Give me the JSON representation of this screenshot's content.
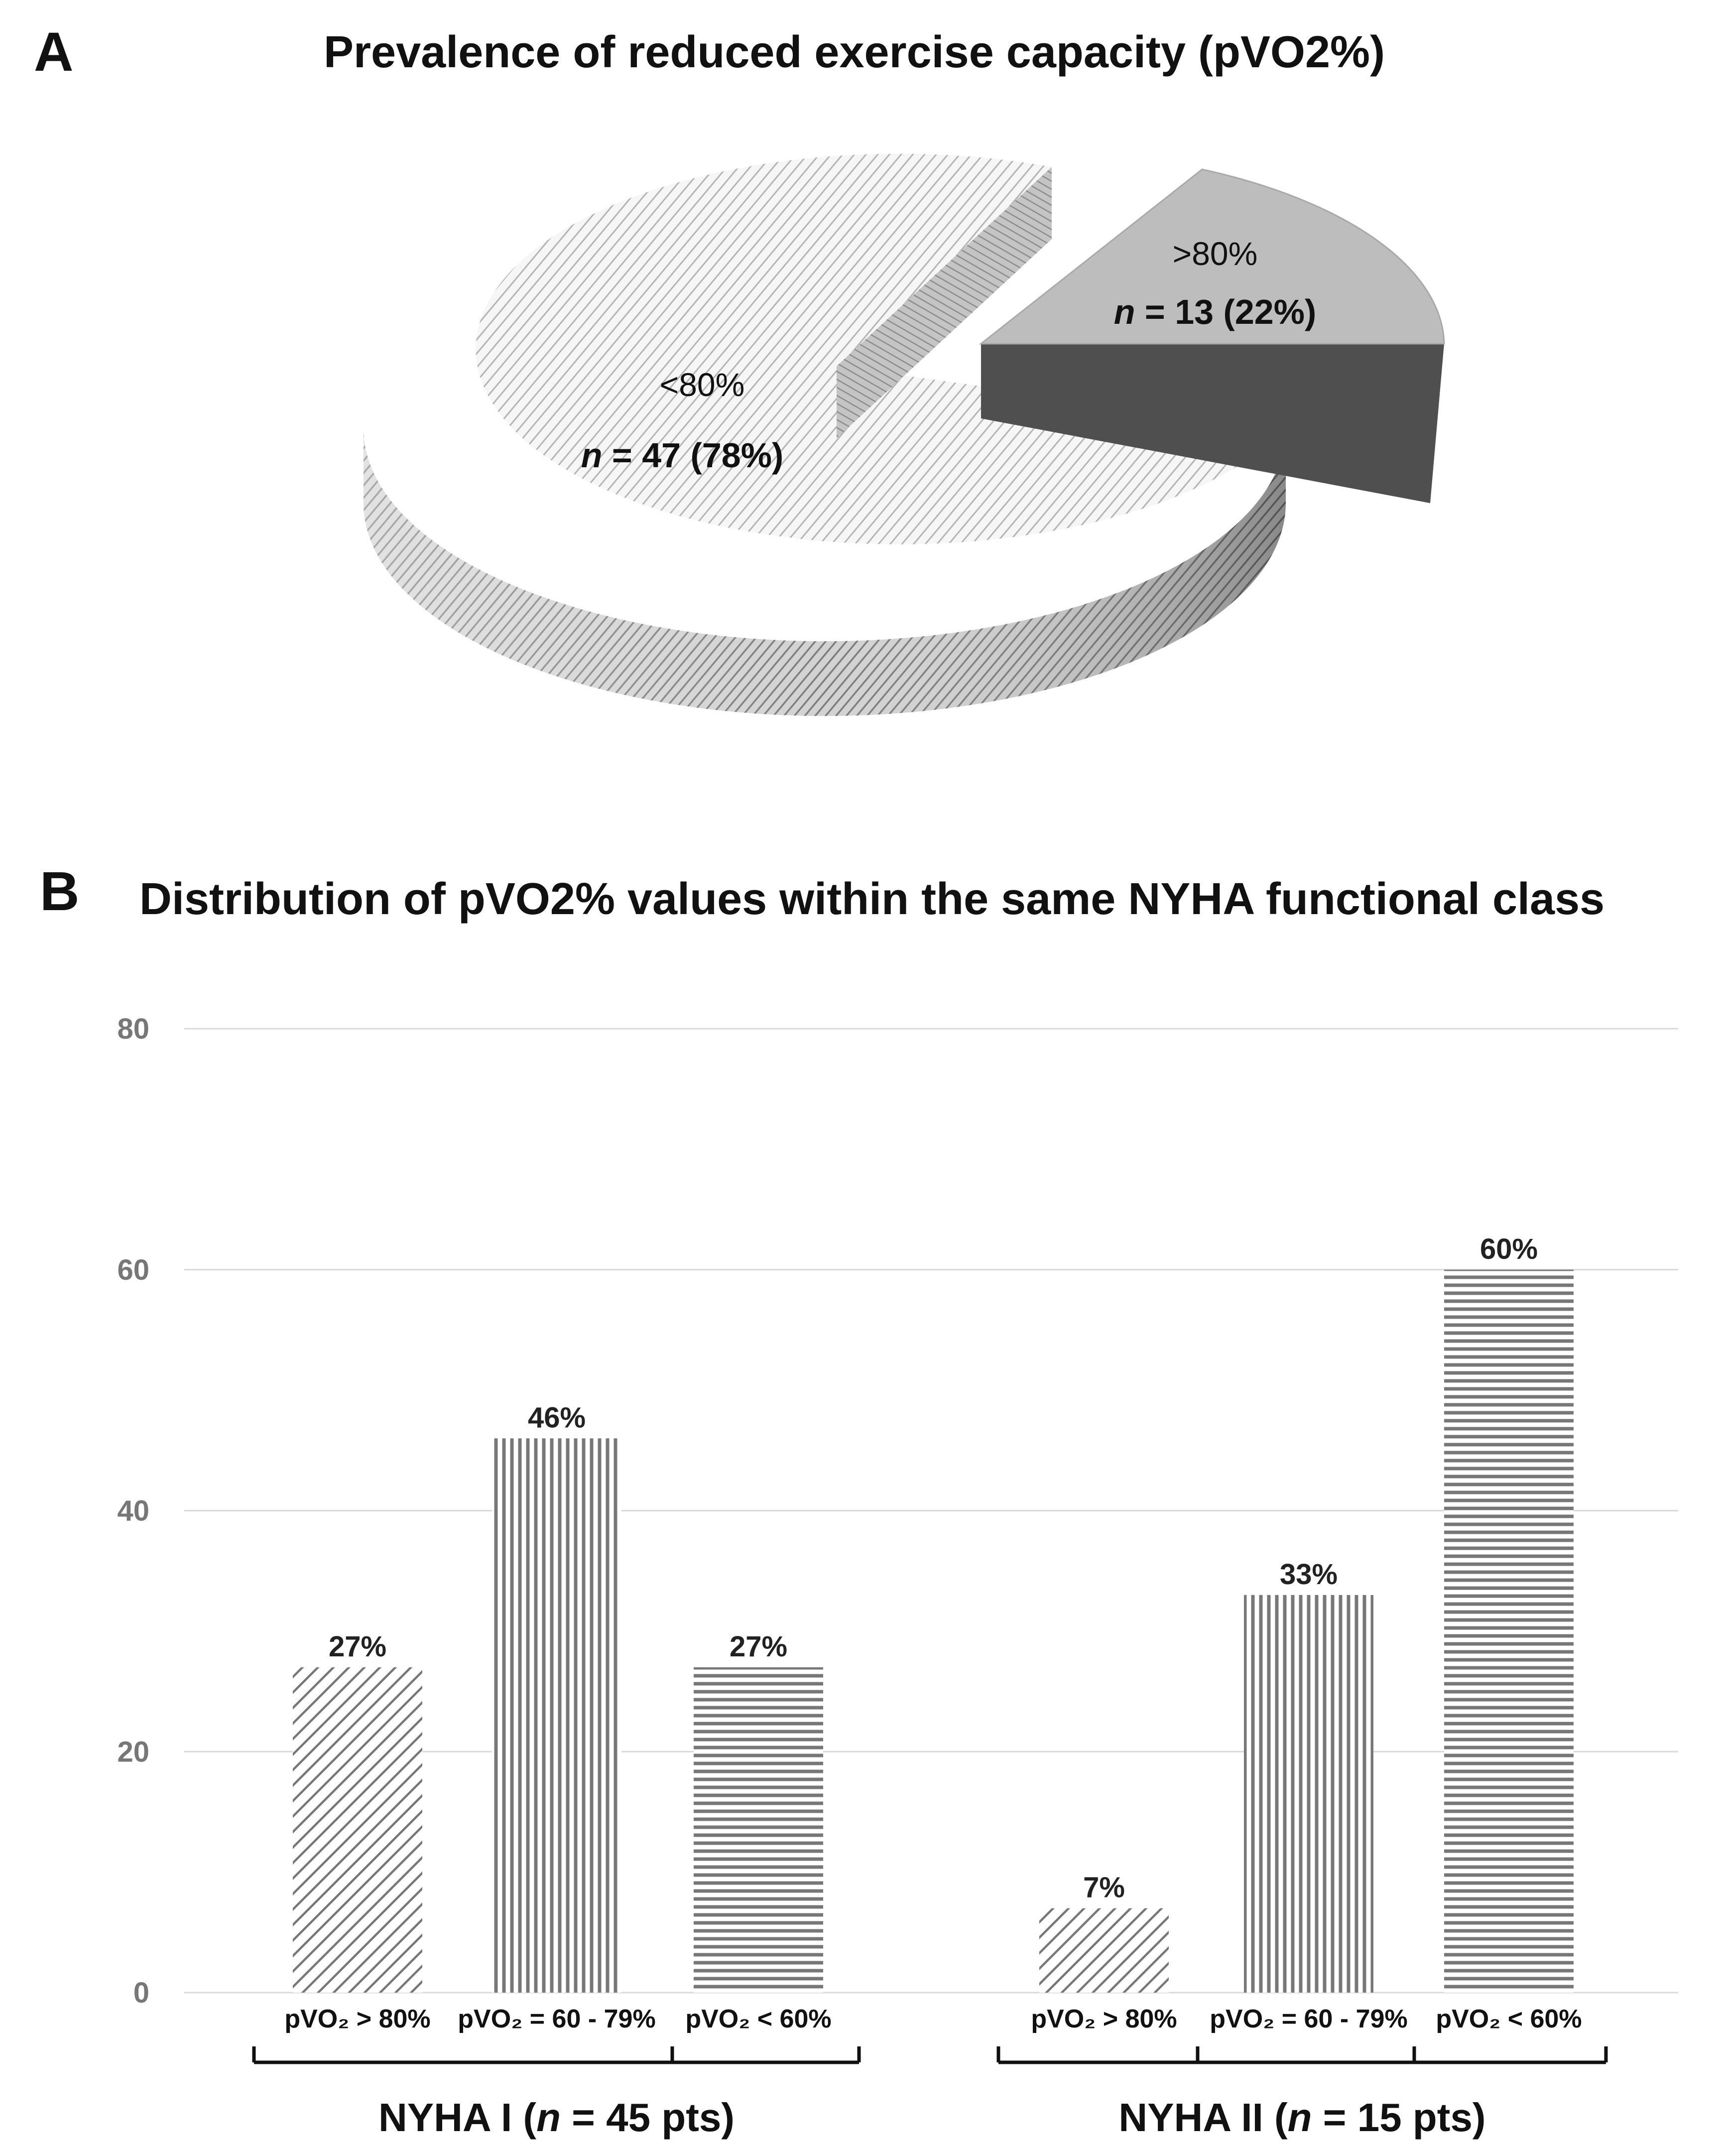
{
  "panel_a": {
    "letter": "A",
    "title": "Prevalence of reduced exercise capacity (pVO2%)"
  },
  "panel_b": {
    "letter": "B",
    "title": "Distribution of pVO2% values within the same NYHA functional class"
  },
  "chart_data": [
    {
      "type": "pie",
      "title": "Prevalence of reduced exercise capacity (pVO2%)",
      "slices": [
        {
          "label": "<80%",
          "count_label": "n = 47 (78%)",
          "n": 47,
          "percent": 78
        },
        {
          "label": ">80%",
          "count_label": "n = 13 (22%)",
          "n": 13,
          "percent": 22,
          "exploded": true
        }
      ]
    },
    {
      "type": "bar",
      "title": "Distribution of pVO2% values within the same NYHA functional class",
      "ylim": [
        0,
        80
      ],
      "yticks": [
        0,
        20,
        40,
        60,
        80
      ],
      "grid": true,
      "groups": [
        {
          "label": "NYHA I (n = 45 pts)",
          "label_prefix": "NYHA I (",
          "label_italic": "n",
          "label_suffix": " = 45 pts)",
          "bars": [
            {
              "category": "pVO₂ > 80%",
              "value": 27,
              "data_label": "27%",
              "pattern": "diagonal"
            },
            {
              "category": "pVO₂ = 60 - 79%",
              "value": 46,
              "data_label": "46%",
              "pattern": "vertical"
            },
            {
              "category": "pVO₂ < 60%",
              "value": 27,
              "data_label": "27%",
              "pattern": "horizontal"
            }
          ]
        },
        {
          "label": "NYHA II (n = 15 pts)",
          "label_prefix": "NYHA II (",
          "label_italic": "n",
          "label_suffix": " = 15 pts)",
          "bars": [
            {
              "category": "pVO₂ > 80%",
              "value": 7,
              "data_label": "7%",
              "pattern": "diagonal"
            },
            {
              "category": "pVO₂ = 60 - 79%",
              "value": 33,
              "data_label": "33%",
              "pattern": "vertical"
            },
            {
              "category": "pVO₂ < 60%",
              "value": 60,
              "data_label": "60%",
              "pattern": "horizontal"
            }
          ]
        }
      ]
    }
  ]
}
